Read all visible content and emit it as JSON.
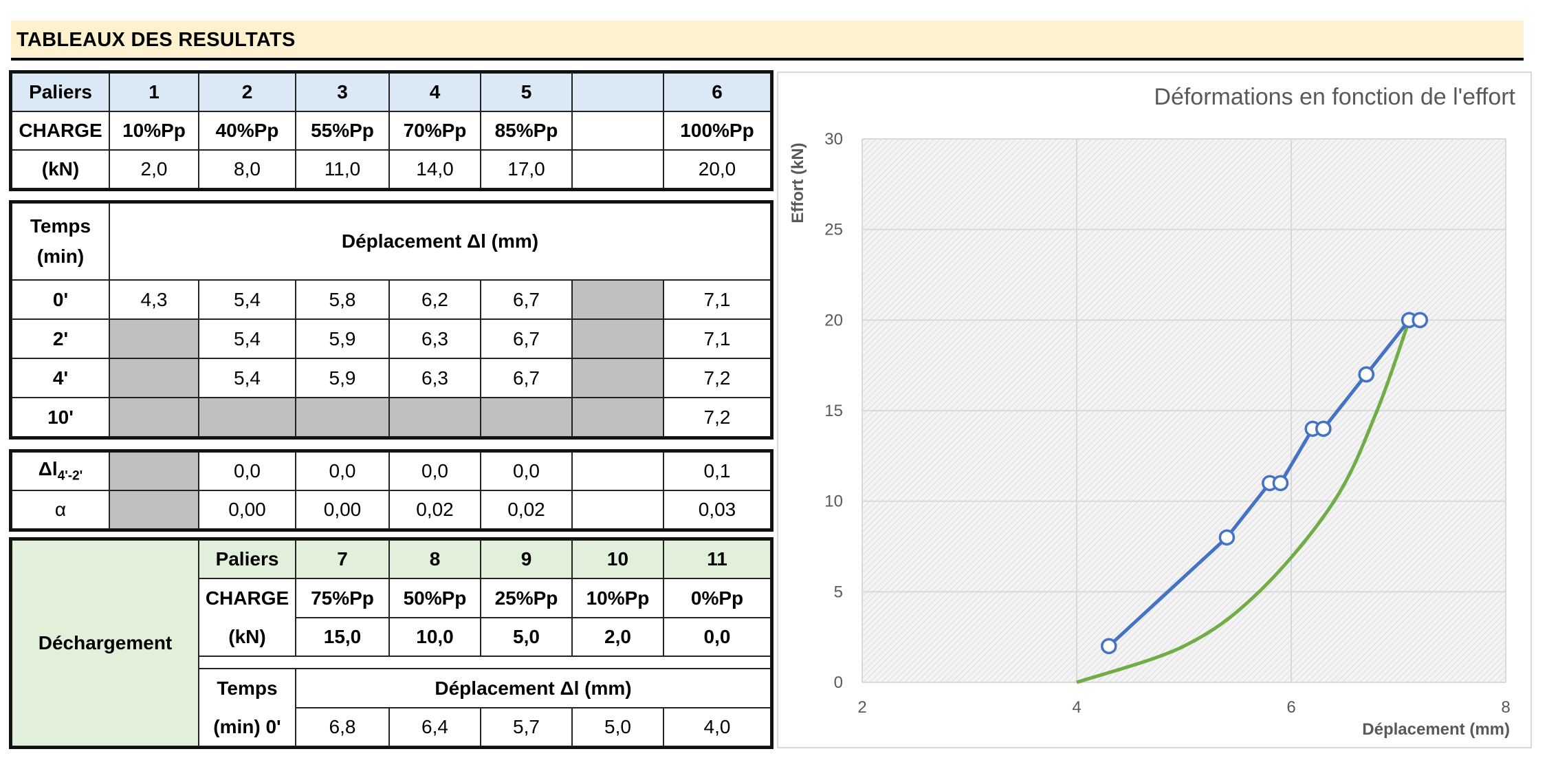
{
  "header": {
    "title": "TABLEAUX DES RESULTATS"
  },
  "loading_table": {
    "row_paliers": {
      "label": "Paliers",
      "values": [
        "1",
        "2",
        "3",
        "4",
        "5",
        "",
        "6"
      ]
    },
    "row_charge": {
      "label": "CHARGE",
      "values": [
        "10%Pp",
        "40%Pp",
        "55%Pp",
        "70%Pp",
        "85%Pp",
        "",
        "100%Pp"
      ]
    },
    "row_kn": {
      "label": "(kN)",
      "values": [
        "2,0",
        "8,0",
        "11,0",
        "14,0",
        "17,0",
        "",
        "20,0"
      ]
    }
  },
  "displacement_table": {
    "time_header": "Temps (min)",
    "time_header_line1": "Temps",
    "time_header_line2": "(min)",
    "title": "Déplacement Δl (mm)",
    "rows": [
      {
        "time": "0'",
        "values": [
          "4,3",
          "5,4",
          "5,8",
          "6,2",
          "6,7",
          "",
          "7,1"
        ]
      },
      {
        "time": "2'",
        "values": [
          "",
          "5,4",
          "5,9",
          "6,3",
          "6,7",
          "",
          "7,1"
        ]
      },
      {
        "time": "4'",
        "values": [
          "",
          "5,4",
          "5,9",
          "6,3",
          "6,7",
          "",
          "7,2"
        ]
      },
      {
        "time": "10'",
        "values": [
          "",
          "",
          "",
          "",
          "",
          "",
          "7,2"
        ]
      }
    ]
  },
  "stats_table": {
    "delta_label": "Δl",
    "delta_sub": "4'-2'",
    "delta_values": [
      "",
      "0,0",
      "0,0",
      "0,0",
      "0,0",
      "",
      "0,1"
    ],
    "alpha_label": "α",
    "alpha_values": [
      "",
      "0,00",
      "0,00",
      "0,02",
      "0,02",
      "",
      "0,03"
    ]
  },
  "unloading_table": {
    "section_label": "Déchargement",
    "paliers_label": "Paliers",
    "paliers": [
      "7",
      "8",
      "9",
      "10",
      "11"
    ],
    "charge_label": "CHARGE",
    "charge": [
      "75%Pp",
      "50%Pp",
      "25%Pp",
      "10%Pp",
      "0%Pp"
    ],
    "kn_label": "(kN)",
    "kn": [
      "15,0",
      "10,0",
      "5,0",
      "2,0",
      "0,0"
    ],
    "time_label_line1": "Temps",
    "time_label_line2": "(min) 0'",
    "displacement_title": "Déplacement Δl (mm)",
    "displacements": [
      "6,8",
      "6,4",
      "5,7",
      "5,0",
      "4,0"
    ]
  },
  "chart_data": {
    "type": "line",
    "title": "Déformations en fonction de l'effort",
    "xlabel": "Déplacement (mm)",
    "ylabel": "Effort (kN)",
    "xlim": [
      2,
      8
    ],
    "ylim": [
      0,
      30
    ],
    "xticks": [
      2,
      4,
      6,
      8
    ],
    "yticks": [
      0,
      5,
      10,
      15,
      20,
      25,
      30
    ],
    "grid": true,
    "plot_background": "hatched light grey",
    "series": [
      {
        "color": "#4472c4",
        "markers": true,
        "points": [
          [
            4.3,
            2
          ],
          [
            5.4,
            8
          ],
          [
            5.8,
            11
          ],
          [
            5.9,
            11
          ],
          [
            6.2,
            14
          ],
          [
            6.3,
            14
          ],
          [
            6.3,
            14
          ],
          [
            6.7,
            17
          ],
          [
            6.7,
            17
          ],
          [
            6.7,
            17
          ],
          [
            7.1,
            20
          ],
          [
            7.1,
            20
          ],
          [
            7.2,
            20
          ],
          [
            7.2,
            20
          ]
        ]
      },
      {
        "color": "#70ad47",
        "markers": false,
        "points": [
          [
            4.0,
            0
          ],
          [
            5.0,
            2
          ],
          [
            5.7,
            5
          ],
          [
            6.4,
            10
          ],
          [
            6.8,
            15
          ],
          [
            7.1,
            20
          ]
        ]
      }
    ]
  }
}
